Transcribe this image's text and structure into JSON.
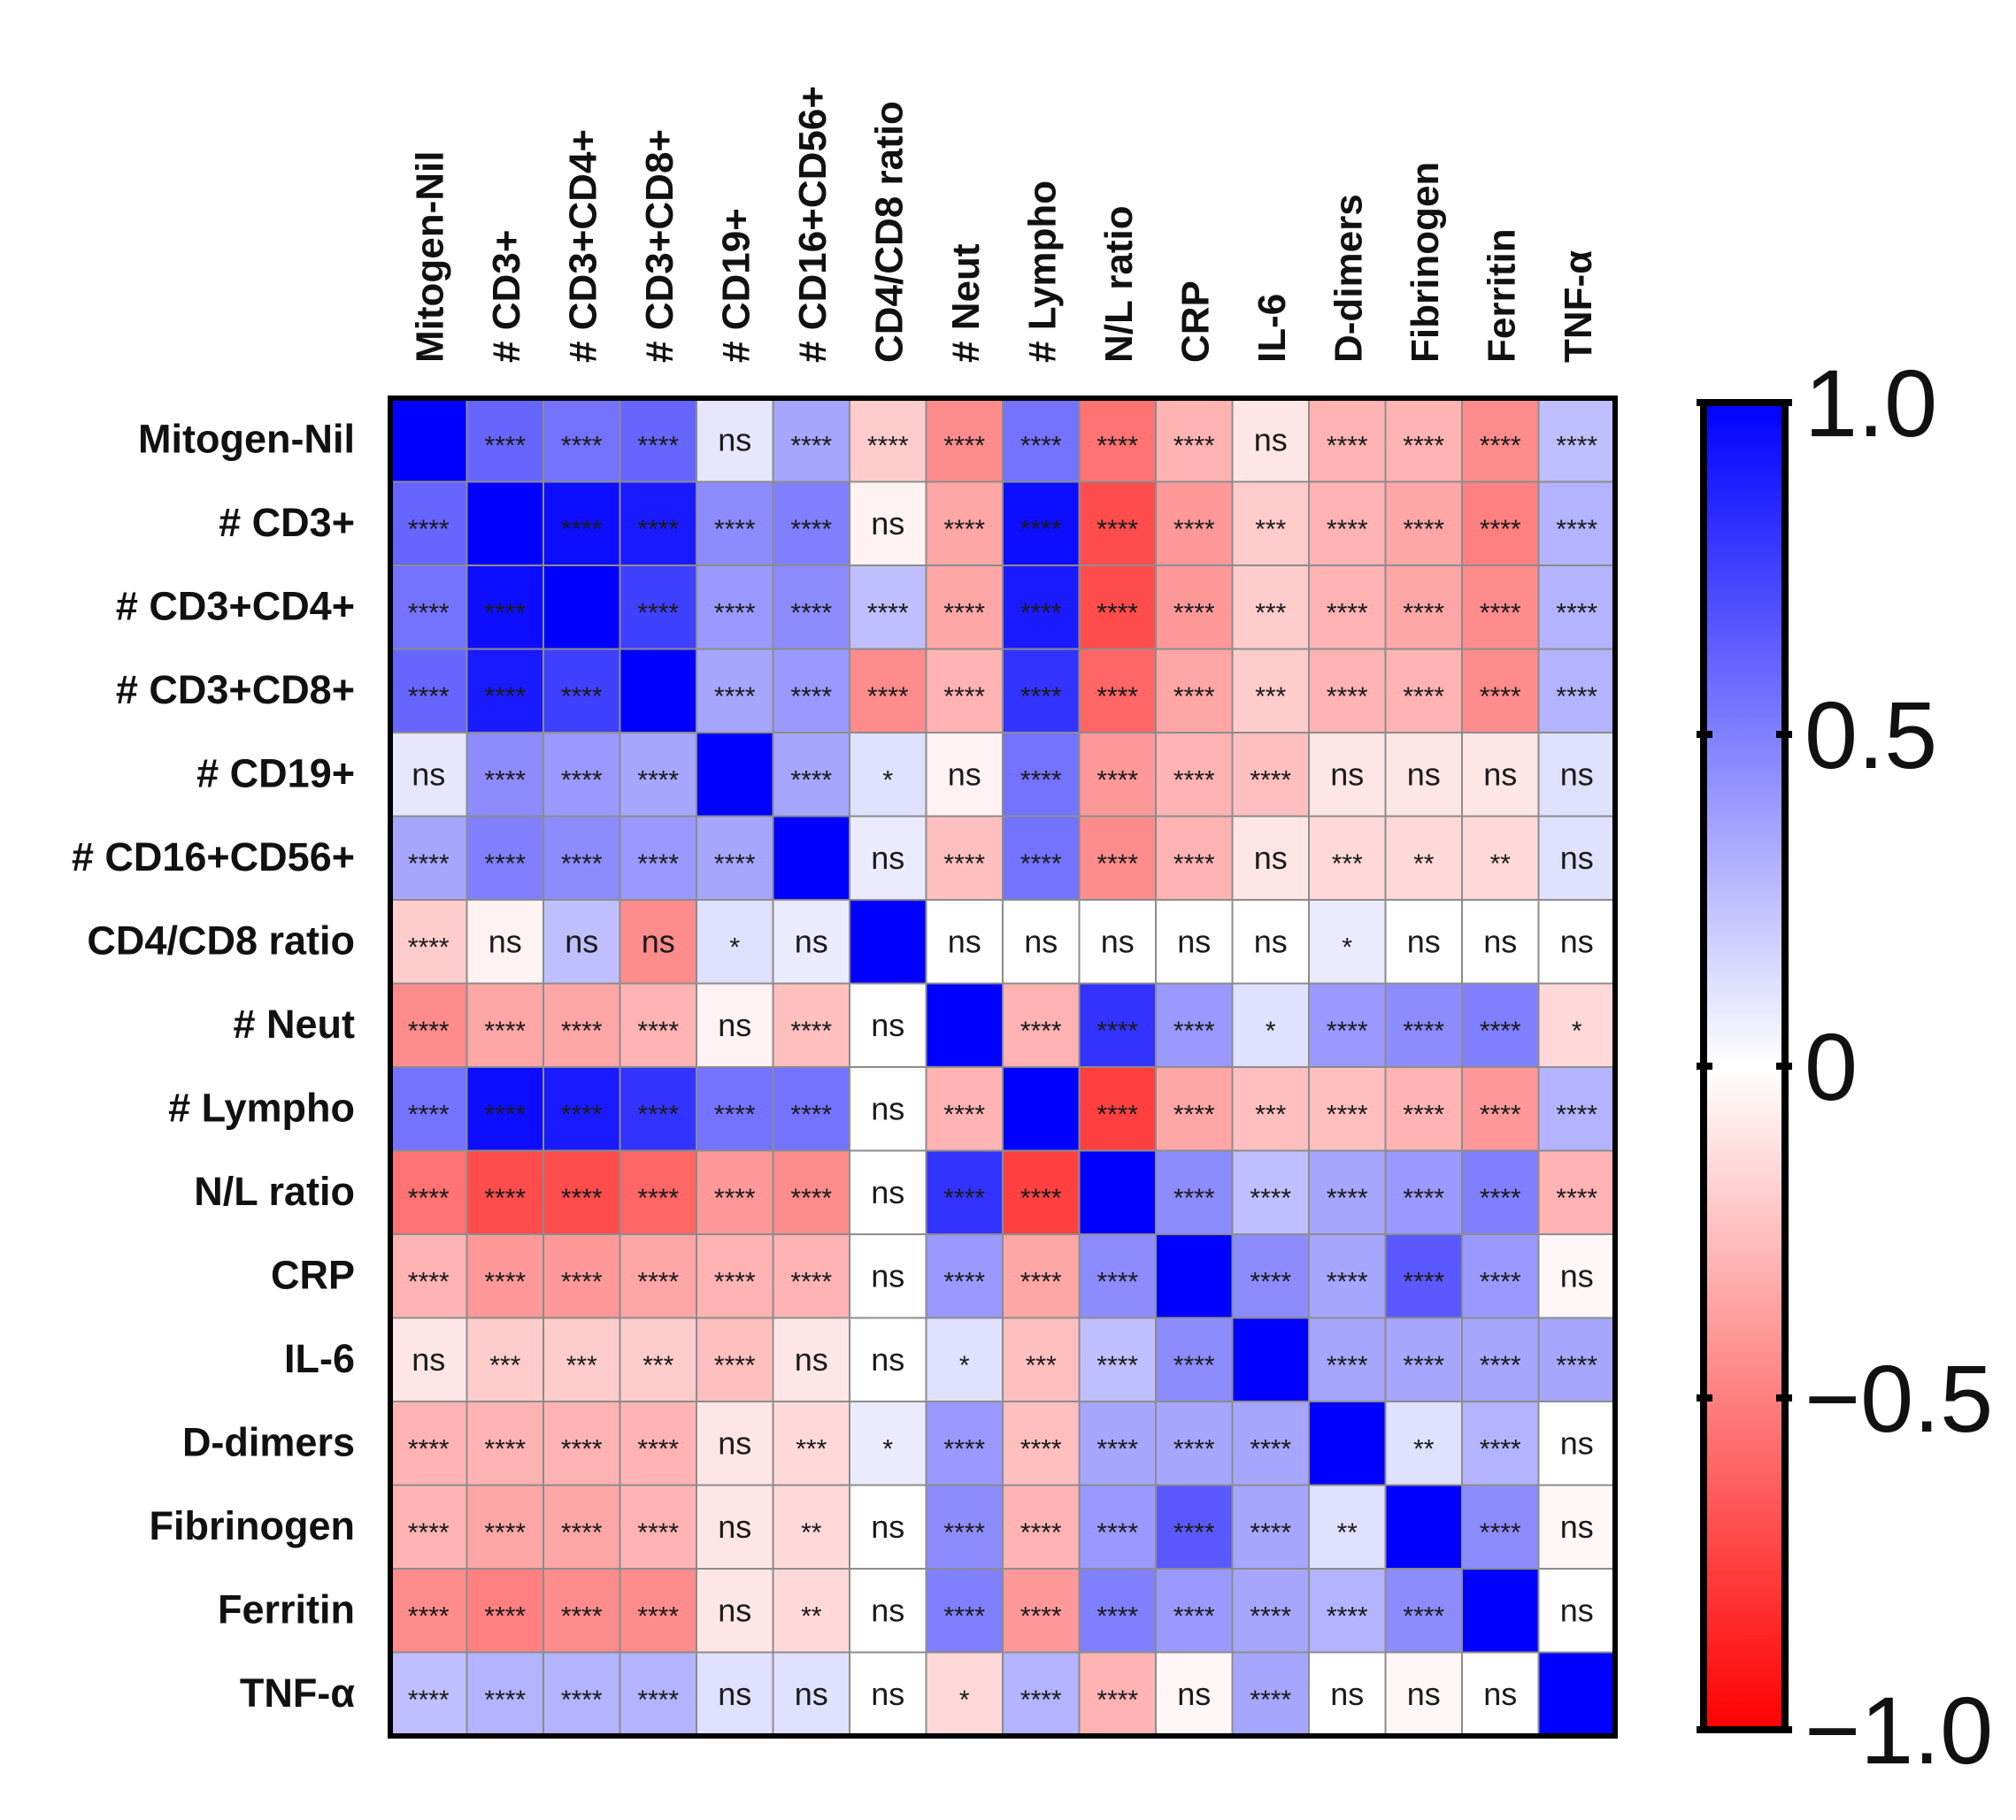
{
  "chart_data": {
    "type": "heatmap",
    "title": "",
    "labels": [
      "Mitogen-Nil",
      "# CD3+",
      "# CD3+CD4+",
      "# CD3+CD8+",
      "# CD19+",
      "# CD16+CD56+",
      "CD4/CD8 ratio",
      "# Neut",
      "# Lympho",
      "N/L ratio",
      "CRP",
      "IL-6",
      "D-dimers",
      "Fibrinogen",
      "Ferritin",
      "TNF-α"
    ],
    "values": [
      [
        1.0,
        0.6,
        0.55,
        0.6,
        0.1,
        0.35,
        -0.2,
        -0.45,
        0.55,
        -0.55,
        -0.3,
        -0.1,
        -0.3,
        -0.3,
        -0.45,
        0.25
      ],
      [
        0.6,
        1.0,
        0.95,
        0.9,
        0.45,
        0.5,
        -0.05,
        -0.35,
        0.95,
        -0.7,
        -0.4,
        -0.2,
        -0.3,
        -0.35,
        -0.5,
        0.3
      ],
      [
        0.55,
        0.95,
        1.0,
        0.75,
        0.4,
        0.45,
        0.25,
        -0.35,
        0.9,
        -0.7,
        -0.4,
        -0.2,
        -0.3,
        -0.35,
        -0.45,
        0.3
      ],
      [
        0.6,
        0.9,
        0.75,
        1.0,
        0.35,
        0.4,
        -0.45,
        -0.3,
        0.8,
        -0.6,
        -0.35,
        -0.2,
        -0.3,
        -0.3,
        -0.45,
        0.3
      ],
      [
        0.1,
        0.45,
        0.4,
        0.35,
        1.0,
        0.35,
        0.12,
        -0.05,
        0.55,
        -0.4,
        -0.3,
        -0.25,
        -0.1,
        -0.1,
        -0.1,
        0.12
      ],
      [
        0.35,
        0.5,
        0.45,
        0.4,
        0.35,
        1.0,
        0.08,
        -0.25,
        0.55,
        -0.45,
        -0.3,
        -0.1,
        -0.15,
        -0.15,
        -0.15,
        0.12
      ],
      [
        -0.2,
        -0.05,
        0.25,
        -0.45,
        0.12,
        0.08,
        1.0,
        0.0,
        0.0,
        0.0,
        0.0,
        0.0,
        0.08,
        0.0,
        0.0,
        0.0
      ],
      [
        -0.45,
        -0.35,
        -0.35,
        -0.3,
        -0.05,
        -0.25,
        0.0,
        1.0,
        -0.3,
        0.8,
        0.4,
        0.12,
        0.4,
        0.45,
        0.5,
        -0.15
      ],
      [
        0.55,
        0.95,
        0.9,
        0.8,
        0.55,
        0.55,
        0.0,
        -0.3,
        1.0,
        -0.75,
        -0.35,
        -0.25,
        -0.25,
        -0.3,
        -0.4,
        0.3
      ],
      [
        -0.55,
        -0.7,
        -0.7,
        -0.6,
        -0.4,
        -0.45,
        0.0,
        0.8,
        -0.75,
        1.0,
        0.45,
        0.25,
        0.35,
        0.4,
        0.5,
        -0.3
      ],
      [
        -0.3,
        -0.4,
        -0.4,
        -0.35,
        -0.3,
        -0.3,
        0.0,
        0.4,
        -0.35,
        0.45,
        1.0,
        0.45,
        0.35,
        0.65,
        0.4,
        -0.03
      ],
      [
        -0.1,
        -0.2,
        -0.2,
        -0.2,
        -0.25,
        -0.1,
        0.0,
        0.12,
        -0.25,
        0.25,
        0.45,
        1.0,
        0.35,
        0.35,
        0.35,
        0.35
      ],
      [
        -0.3,
        -0.3,
        -0.3,
        -0.3,
        -0.1,
        -0.15,
        0.08,
        0.4,
        -0.25,
        0.35,
        0.35,
        0.35,
        1.0,
        0.12,
        0.3,
        0.0
      ],
      [
        -0.3,
        -0.35,
        -0.35,
        -0.3,
        -0.1,
        -0.15,
        0.0,
        0.45,
        -0.3,
        0.4,
        0.65,
        0.35,
        0.12,
        1.0,
        0.45,
        -0.03
      ],
      [
        -0.45,
        -0.5,
        -0.45,
        -0.45,
        -0.1,
        -0.15,
        0.0,
        0.5,
        -0.4,
        0.5,
        0.4,
        0.35,
        0.3,
        0.45,
        1.0,
        0.0
      ],
      [
        0.25,
        0.3,
        0.3,
        0.3,
        0.12,
        0.12,
        0.0,
        -0.15,
        0.3,
        -0.3,
        -0.03,
        0.35,
        0.0,
        -0.03,
        0.0,
        1.0
      ]
    ],
    "significance": [
      [
        "",
        "****",
        "****",
        "****",
        "ns",
        "****",
        "****",
        "****",
        "****",
        "****",
        "****",
        "ns",
        "****",
        "****",
        "****",
        "****"
      ],
      [
        "****",
        "",
        "****",
        "****",
        "****",
        "****",
        "ns",
        "****",
        "****",
        "****",
        "****",
        "***",
        "****",
        "****",
        "****",
        "****"
      ],
      [
        "****",
        "****",
        "",
        "****",
        "****",
        "****",
        "****",
        "****",
        "****",
        "****",
        "****",
        "***",
        "****",
        "****",
        "****",
        "****"
      ],
      [
        "****",
        "****",
        "****",
        "",
        "****",
        "****",
        "****",
        "****",
        "****",
        "****",
        "****",
        "***",
        "****",
        "****",
        "****",
        "****"
      ],
      [
        "ns",
        "****",
        "****",
        "****",
        "",
        "****",
        "*",
        "ns",
        "****",
        "****",
        "****",
        "****",
        "ns",
        "ns",
        "ns",
        "ns"
      ],
      [
        "****",
        "****",
        "****",
        "****",
        "****",
        "",
        "ns",
        "****",
        "****",
        "****",
        "****",
        "ns",
        "***",
        "**",
        "**",
        "ns"
      ],
      [
        "****",
        "ns",
        "ns",
        "ns",
        "*",
        "ns",
        "",
        "ns",
        "ns",
        "ns",
        "ns",
        "ns",
        "*",
        "ns",
        "ns",
        "ns"
      ],
      [
        "****",
        "****",
        "****",
        "****",
        "ns",
        "****",
        "ns",
        "",
        "****",
        "****",
        "****",
        "*",
        "****",
        "****",
        "****",
        "*"
      ],
      [
        "****",
        "****",
        "****",
        "****",
        "****",
        "****",
        "ns",
        "****",
        "",
        "****",
        "****",
        "***",
        "****",
        "****",
        "****",
        "****"
      ],
      [
        "****",
        "****",
        "****",
        "****",
        "****",
        "****",
        "ns",
        "****",
        "****",
        "",
        "****",
        "****",
        "****",
        "****",
        "****",
        "****"
      ],
      [
        "****",
        "****",
        "****",
        "****",
        "****",
        "****",
        "ns",
        "****",
        "****",
        "****",
        "",
        "****",
        "****",
        "****",
        "****",
        "ns"
      ],
      [
        "ns",
        "***",
        "***",
        "***",
        "****",
        "ns",
        "ns",
        "*",
        "***",
        "****",
        "****",
        "",
        "****",
        "****",
        "****",
        "****"
      ],
      [
        "****",
        "****",
        "****",
        "****",
        "ns",
        "***",
        "*",
        "****",
        "****",
        "****",
        "****",
        "****",
        "",
        "**",
        "****",
        "ns"
      ],
      [
        "****",
        "****",
        "****",
        "****",
        "ns",
        "**",
        "ns",
        "****",
        "****",
        "****",
        "****",
        "****",
        "**",
        "",
        "****",
        "ns"
      ],
      [
        "****",
        "****",
        "****",
        "****",
        "ns",
        "**",
        "ns",
        "****",
        "****",
        "****",
        "****",
        "****",
        "****",
        "****",
        "",
        "ns"
      ],
      [
        "****",
        "****",
        "****",
        "****",
        "ns",
        "ns",
        "ns",
        "*",
        "****",
        "****",
        "ns",
        "****",
        "ns",
        "ns",
        "ns",
        ""
      ]
    ],
    "colorbar": {
      "range": [
        -1.0,
        1.0
      ],
      "tick_values": [
        1.0,
        0.5,
        0,
        -0.5,
        -1.0
      ],
      "tick_labels": [
        "1.0",
        "0.5",
        "0",
        "−0.5",
        "−1.0"
      ],
      "colors": {
        "negative": "#ff0000",
        "zero": "#ffffff",
        "positive": "#0000ff"
      }
    }
  }
}
